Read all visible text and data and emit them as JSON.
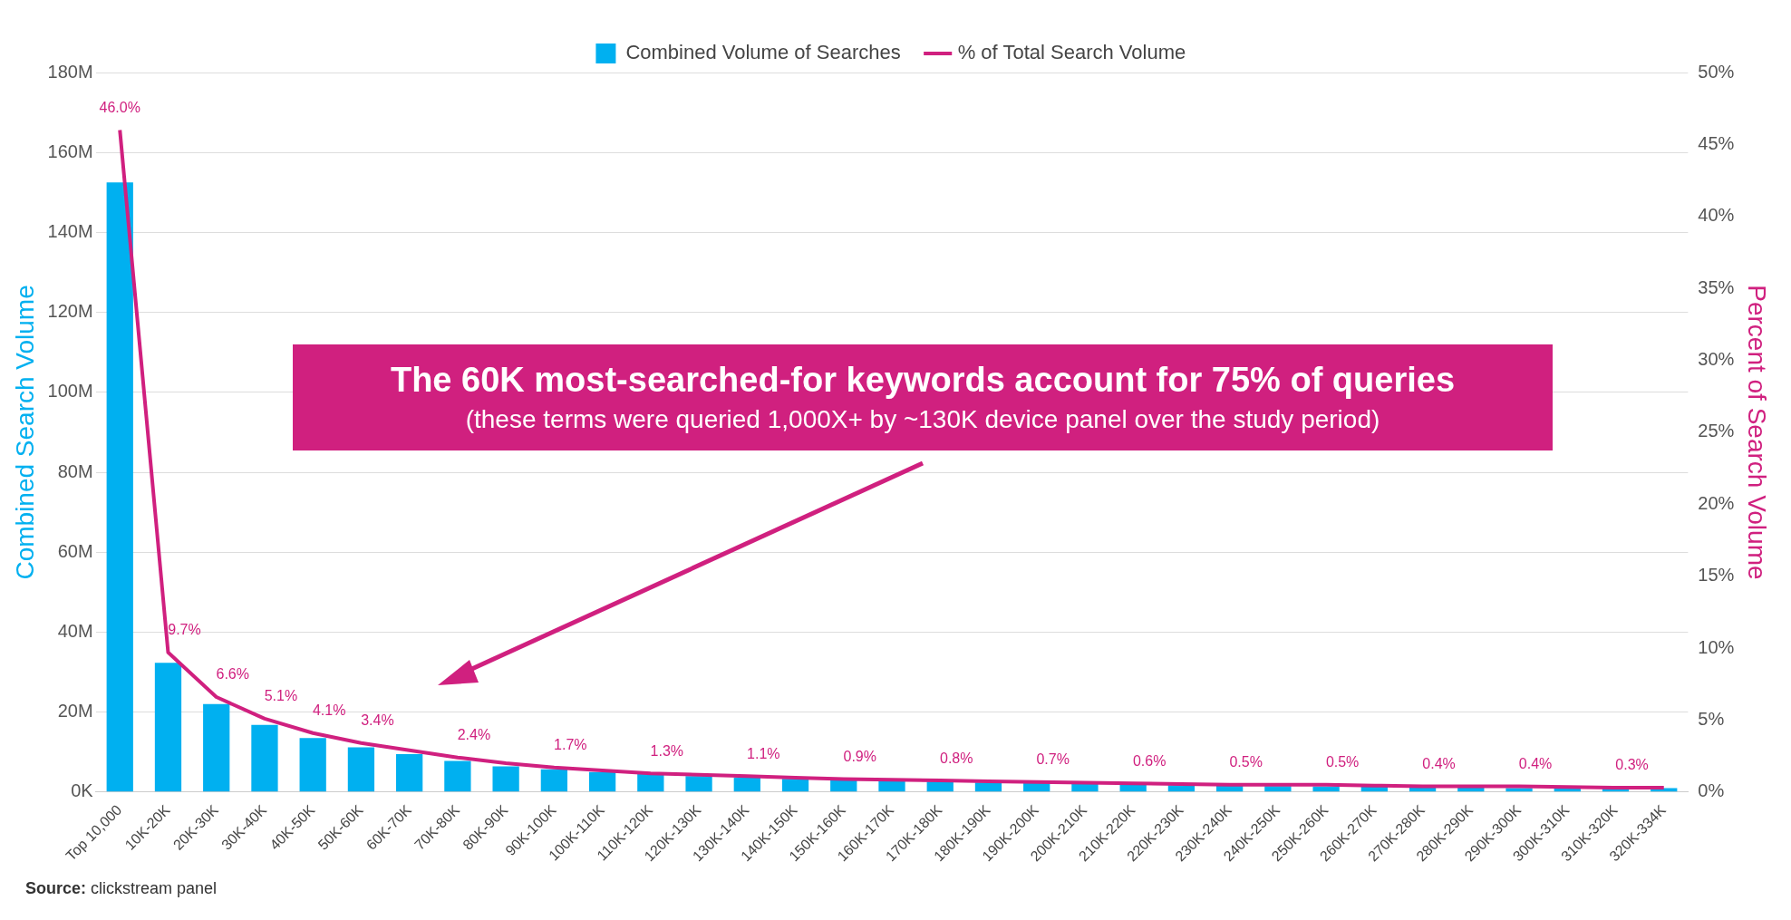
{
  "chart_data": {
    "type": "bar",
    "categories": [
      "Top 10,000",
      "10K-20K",
      "20K-30K",
      "30K-40K",
      "40K-50K",
      "50K-60K",
      "60K-70K",
      "70K-80K",
      "80K-90K",
      "90K-100K",
      "100K-110K",
      "110K-120K",
      "120K-130K",
      "130K-140K",
      "140K-150K",
      "150K-160K",
      "160K-170K",
      "170K-180K",
      "180K-190K",
      "190K-200K",
      "200K-210K",
      "210K-220K",
      "220K-230K",
      "230K-240K",
      "240K-250K",
      "250K-260K",
      "260K-270K",
      "270K-280K",
      "280K-290K",
      "290K-300K",
      "300K-310K",
      "310K-320K",
      "320K-334K"
    ],
    "series": [
      {
        "name": "Combined Volume of Searches",
        "color": "#00b0f0",
        "values": [
          152.5,
          32.3,
          22,
          16.8,
          13.5,
          11.2,
          9.5,
          7.8,
          6.4,
          5.7,
          5.0,
          4.5,
          4.0,
          3.6,
          3.3,
          3.0,
          2.8,
          2.6,
          2.4,
          2.2,
          2.0,
          1.9,
          1.7,
          1.6,
          1.5,
          1.4,
          1.3,
          1.2,
          1.1,
          1.0,
          0.9,
          0.9,
          1.0
        ]
      },
      {
        "name": "% of Total Search Volume",
        "type": "line",
        "axis": "y2",
        "color": "#d0207f",
        "values": [
          46.0,
          9.7,
          6.6,
          5.1,
          4.1,
          3.4,
          2.9,
          2.4,
          2.0,
          1.7,
          1.5,
          1.3,
          1.2,
          1.1,
          1.0,
          0.9,
          0.85,
          0.8,
          0.75,
          0.7,
          0.65,
          0.6,
          0.55,
          0.5,
          0.5,
          0.5,
          0.45,
          0.4,
          0.4,
          0.4,
          0.35,
          0.3,
          0.3
        ],
        "value_labels": [
          "46.0%",
          "9.7%",
          "6.6%",
          "5.1%",
          "4.1%",
          "3.4%",
          null,
          "2.4%",
          null,
          "1.7%",
          null,
          "1.3%",
          null,
          "1.1%",
          null,
          "0.9%",
          null,
          "0.8%",
          null,
          "0.7%",
          null,
          "0.6%",
          null,
          "0.5%",
          null,
          "0.5%",
          null,
          "0.4%",
          null,
          "0.4%",
          null,
          "0.3%",
          null
        ]
      }
    ],
    "ylabel": "Combined Search Volume",
    "y2label": "Percent of Search Volume",
    "ylim": [
      0,
      180
    ],
    "yticks": [
      {
        "value": 0,
        "label": "0K"
      },
      {
        "value": 20,
        "label": "20M"
      },
      {
        "value": 40,
        "label": "40M"
      },
      {
        "value": 60,
        "label": "60M"
      },
      {
        "value": 80,
        "label": "80M"
      },
      {
        "value": 100,
        "label": "100M"
      },
      {
        "value": 120,
        "label": "120M"
      },
      {
        "value": 140,
        "label": "140M"
      },
      {
        "value": 160,
        "label": "160M"
      },
      {
        "value": 180,
        "label": "180M"
      }
    ],
    "y2lim": [
      0,
      50
    ],
    "y2ticks": [
      {
        "value": 0,
        "label": "0%"
      },
      {
        "value": 5,
        "label": "5%"
      },
      {
        "value": 10,
        "label": "10%"
      },
      {
        "value": 15,
        "label": "15%"
      },
      {
        "value": 20,
        "label": "20%"
      },
      {
        "value": 25,
        "label": "25%"
      },
      {
        "value": 30,
        "label": "30%"
      },
      {
        "value": 35,
        "label": "35%"
      },
      {
        "value": 40,
        "label": "40%"
      },
      {
        "value": 45,
        "label": "45%"
      },
      {
        "value": 50,
        "label": "50%"
      }
    ],
    "grid": "y",
    "legend": "top",
    "marker": "none",
    "annotations": [
      "The 60K most-searched-for keywords account for 75% of queries",
      "(these terms were queried 1,000X+ by ~130K device panel over the study period)",
      "Source: clickstream panel"
    ]
  }
}
